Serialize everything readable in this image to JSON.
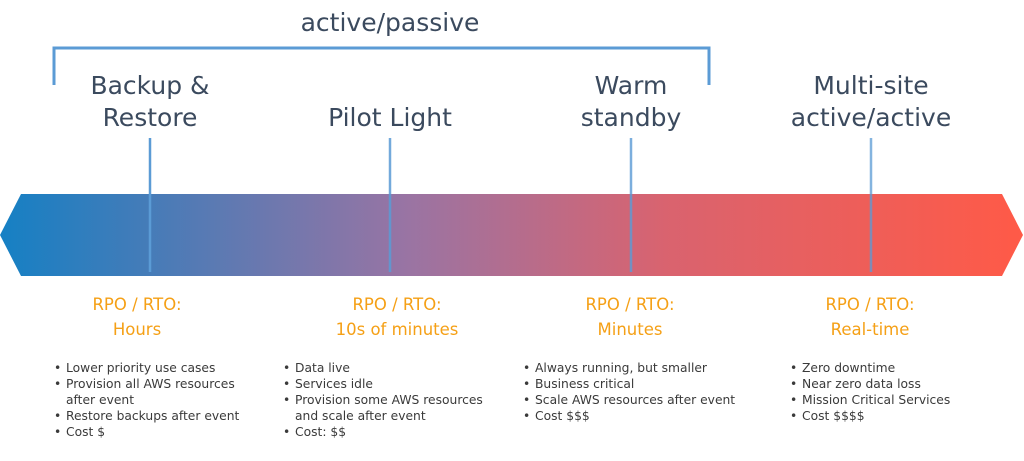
{
  "title": "active/passive",
  "colors": {
    "gradient_start": "#1580c4",
    "gradient_end": "#ff5a47",
    "bracket": "#5b9bd5",
    "accent": "#f5a016",
    "text": "#3b4a5e"
  },
  "strategies": [
    {
      "name_lines": [
        "Backup &",
        "Restore"
      ],
      "rpo_label": "RPO / RTO:",
      "rpo_value": "Hours",
      "bullets": [
        "Lower priority use cases",
        "Provision all AWS resources after event",
        "Restore backups after event",
        "Cost $"
      ]
    },
    {
      "name_lines": [
        "Pilot Light"
      ],
      "rpo_label": "RPO / RTO:",
      "rpo_value": "10s of minutes",
      "bullets": [
        "Data live",
        "Services idle",
        "Provision some AWS resources and scale after event",
        "Cost: $$"
      ]
    },
    {
      "name_lines": [
        "Warm",
        "standby"
      ],
      "rpo_label": "RPO / RTO:",
      "rpo_value": "Minutes",
      "bullets": [
        "Always running, but smaller",
        "Business critical",
        "Scale AWS resources after event",
        "Cost $$$"
      ]
    },
    {
      "name_lines": [
        "Multi-site",
        "active/active"
      ],
      "rpo_label": "RPO / RTO:",
      "rpo_value": "Real-time",
      "bullets": [
        "Zero downtime",
        "Near zero data loss",
        "Mission Critical Services",
        "Cost $$$$"
      ]
    }
  ]
}
